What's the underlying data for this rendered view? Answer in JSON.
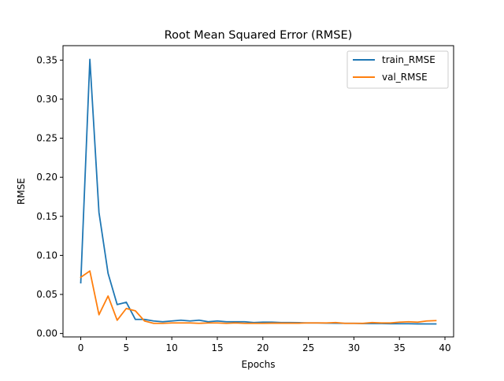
{
  "chart_data": {
    "type": "line",
    "title": "Root Mean Squared Error (RMSE)",
    "xlabel": "Epochs",
    "ylabel": "RMSE",
    "xlim": [
      -1.95,
      40.95
    ],
    "ylim": [
      -0.0044,
      0.3685
    ],
    "xticks": [
      0,
      5,
      10,
      15,
      20,
      25,
      30,
      35,
      40
    ],
    "xtick_labels": [
      "0",
      "5",
      "10",
      "15",
      "20",
      "25",
      "30",
      "35",
      "40"
    ],
    "yticks": [
      0.0,
      0.05,
      0.1,
      0.15,
      0.2,
      0.25,
      0.3,
      0.35
    ],
    "ytick_labels": [
      "0.00",
      "0.05",
      "0.10",
      "0.15",
      "0.20",
      "0.25",
      "0.30",
      "0.35"
    ],
    "grid": false,
    "legend_position": "top-right",
    "x": [
      0,
      1,
      2,
      3,
      4,
      5,
      6,
      7,
      8,
      9,
      10,
      11,
      12,
      13,
      14,
      15,
      16,
      17,
      18,
      19,
      20,
      21,
      22,
      23,
      24,
      25,
      26,
      27,
      28,
      29,
      30,
      31,
      32,
      33,
      34,
      35,
      36,
      37,
      38,
      39
    ],
    "series": [
      {
        "name": "train_RMSE",
        "color": "#1f77b4",
        "values": [
          0.065,
          0.351,
          0.155,
          0.077,
          0.037,
          0.04,
          0.018,
          0.018,
          0.016,
          0.015,
          0.016,
          0.017,
          0.016,
          0.017,
          0.015,
          0.016,
          0.015,
          0.015,
          0.015,
          0.014,
          0.0145,
          0.0145,
          0.014,
          0.014,
          0.0138,
          0.0135,
          0.0135,
          0.0133,
          0.0132,
          0.013,
          0.013,
          0.0128,
          0.0128,
          0.0127,
          0.0125,
          0.0125,
          0.0125,
          0.0123,
          0.0122,
          0.0122
        ]
      },
      {
        "name": "val_RMSE",
        "color": "#ff7f0e",
        "values": [
          0.072,
          0.08,
          0.024,
          0.048,
          0.017,
          0.032,
          0.029,
          0.016,
          0.013,
          0.013,
          0.0135,
          0.0135,
          0.0135,
          0.013,
          0.0135,
          0.0135,
          0.013,
          0.0135,
          0.013,
          0.013,
          0.013,
          0.0132,
          0.0132,
          0.0132,
          0.0132,
          0.0135,
          0.0135,
          0.0135,
          0.014,
          0.013,
          0.013,
          0.013,
          0.014,
          0.0135,
          0.0135,
          0.0145,
          0.015,
          0.0145,
          0.016,
          0.0165
        ]
      }
    ]
  }
}
